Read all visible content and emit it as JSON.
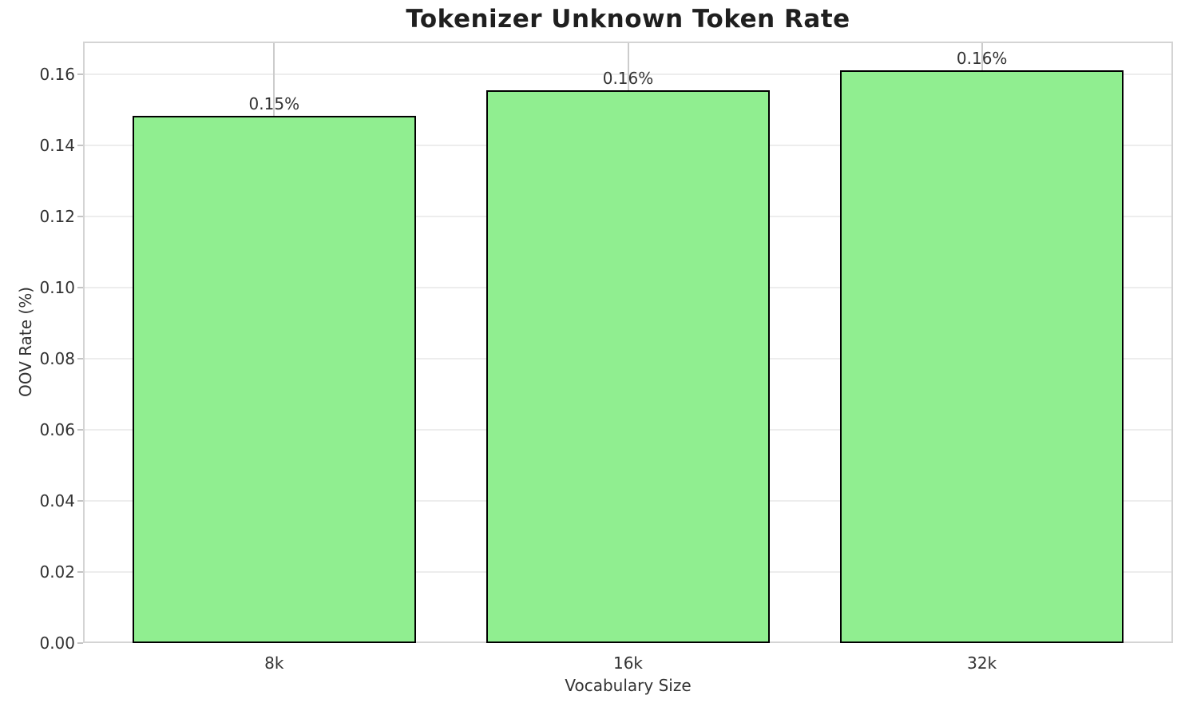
{
  "chart_data": {
    "type": "bar",
    "title": "Tokenizer Unknown Token Rate",
    "xlabel": "Vocabulary Size",
    "ylabel": "OOV Rate (%)",
    "categories": [
      "8k",
      "16k",
      "32k"
    ],
    "values": [
      0.1483,
      0.1555,
      0.1611
    ],
    "bar_labels": [
      "0.15%",
      "0.16%",
      "0.16%"
    ],
    "yticks": [
      0.0,
      0.02,
      0.04,
      0.06,
      0.08,
      0.1,
      0.12,
      0.14,
      0.16
    ],
    "ytick_labels": [
      "0.00",
      "0.02",
      "0.04",
      "0.06",
      "0.08",
      "0.10",
      "0.12",
      "0.14",
      "0.16"
    ],
    "ylim": [
      0,
      0.1692
    ],
    "xlim": [
      -0.54,
      2.54
    ],
    "bar_width": 0.8,
    "grid": "both",
    "legend": "none",
    "colors": {
      "bar_fill": "#90ee90",
      "bar_edge": "#000000",
      "grid_horizontal": "#ededed",
      "grid_vertical": "#cccccc",
      "spine": "#d4d4d4",
      "title_text": "#1f1f1f",
      "label_text": "#333333"
    }
  }
}
